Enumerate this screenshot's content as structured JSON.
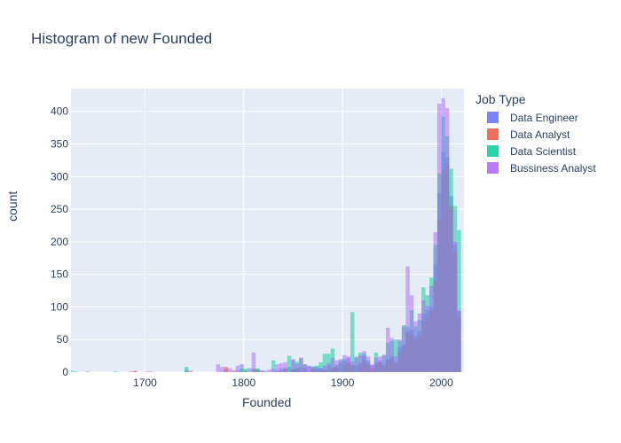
{
  "chart_data": {
    "type": "histogram",
    "title": "Histogram of new Founded",
    "xlabel": "Founded",
    "ylabel": "count",
    "xlim": [
      1625,
      2023
    ],
    "ylim": [
      0,
      435
    ],
    "x_ticks": [
      1700,
      1800,
      1900,
      2000
    ],
    "y_ticks": [
      0,
      50,
      100,
      150,
      200,
      250,
      300,
      350,
      400
    ],
    "bin_width": 4,
    "barmode": "overlay",
    "bar_opacity": 0.5,
    "grid": true,
    "legend": {
      "title": "Job Type",
      "placement": "right"
    },
    "series": [
      {
        "name": "Data Engineer",
        "color": "#636efa",
        "bins": [
          [
            1640,
            1
          ],
          [
            1740,
            3
          ],
          [
            1780,
            5
          ],
          [
            1792,
            2
          ],
          [
            1796,
            12
          ],
          [
            1804,
            6
          ],
          [
            1812,
            4
          ],
          [
            1820,
            2
          ],
          [
            1832,
            3
          ],
          [
            1840,
            6
          ],
          [
            1844,
            8
          ],
          [
            1848,
            4
          ],
          [
            1852,
            6
          ],
          [
            1856,
            8
          ],
          [
            1860,
            5
          ],
          [
            1864,
            9
          ],
          [
            1868,
            5
          ],
          [
            1872,
            8
          ],
          [
            1876,
            6
          ],
          [
            1880,
            3
          ],
          [
            1884,
            10
          ],
          [
            1888,
            6
          ],
          [
            1892,
            7
          ],
          [
            1896,
            14
          ],
          [
            1900,
            17
          ],
          [
            1904,
            22
          ],
          [
            1908,
            11
          ],
          [
            1912,
            11
          ],
          [
            1916,
            14
          ],
          [
            1920,
            25
          ],
          [
            1924,
            15
          ],
          [
            1928,
            10
          ],
          [
            1932,
            15
          ],
          [
            1936,
            18
          ],
          [
            1940,
            12
          ],
          [
            1944,
            20
          ],
          [
            1948,
            24
          ],
          [
            1952,
            16
          ],
          [
            1956,
            38
          ],
          [
            1960,
            42
          ],
          [
            1964,
            63
          ],
          [
            1968,
            65
          ],
          [
            1972,
            55
          ],
          [
            1976,
            63
          ],
          [
            1980,
            90
          ],
          [
            1984,
            95
          ],
          [
            1988,
            100
          ],
          [
            1992,
            165
          ],
          [
            1996,
            275
          ],
          [
            2000,
            338
          ],
          [
            2004,
            330
          ],
          [
            2008,
            270
          ],
          [
            2012,
            195
          ],
          [
            2016,
            93
          ]
        ]
      },
      {
        "name": "Data Analyst",
        "color": "#ef553b",
        "bins": [
          [
            1684,
            1
          ],
          [
            1688,
            2
          ],
          [
            1704,
            1
          ],
          [
            1744,
            2
          ],
          [
            1780,
            8
          ],
          [
            1788,
            3
          ],
          [
            1800,
            3
          ],
          [
            1808,
            5
          ],
          [
            1812,
            3
          ],
          [
            1816,
            2
          ],
          [
            1836,
            2
          ],
          [
            1840,
            5
          ],
          [
            1848,
            4
          ],
          [
            1852,
            6
          ],
          [
            1860,
            7
          ],
          [
            1868,
            6
          ],
          [
            1876,
            4
          ],
          [
            1880,
            4
          ],
          [
            1888,
            7
          ],
          [
            1892,
            9
          ],
          [
            1900,
            11
          ],
          [
            1904,
            15
          ],
          [
            1908,
            10
          ],
          [
            1916,
            9
          ],
          [
            1920,
            18
          ],
          [
            1924,
            11
          ],
          [
            1928,
            6
          ],
          [
            1932,
            11
          ],
          [
            1936,
            15
          ],
          [
            1940,
            10
          ],
          [
            1944,
            18
          ],
          [
            1948,
            20
          ],
          [
            1952,
            14
          ],
          [
            1956,
            30
          ],
          [
            1960,
            40
          ],
          [
            1964,
            60
          ],
          [
            1968,
            58
          ],
          [
            1972,
            50
          ],
          [
            1976,
            56
          ],
          [
            1980,
            78
          ],
          [
            1984,
            85
          ],
          [
            1988,
            95
          ],
          [
            1992,
            140
          ],
          [
            1996,
            235
          ],
          [
            2000,
            310
          ],
          [
            2004,
            320
          ],
          [
            2008,
            255
          ],
          [
            2012,
            185
          ],
          [
            2016,
            85
          ]
        ]
      },
      {
        "name": "Data Scientist",
        "color": "#00cc96",
        "bins": [
          [
            1624,
            2
          ],
          [
            1628,
            1
          ],
          [
            1668,
            1
          ],
          [
            1740,
            8
          ],
          [
            1796,
            5
          ],
          [
            1800,
            5
          ],
          [
            1808,
            4
          ],
          [
            1812,
            6
          ],
          [
            1828,
            18
          ],
          [
            1836,
            6
          ],
          [
            1844,
            25
          ],
          [
            1848,
            18
          ],
          [
            1852,
            16
          ],
          [
            1856,
            22
          ],
          [
            1860,
            12
          ],
          [
            1868,
            9
          ],
          [
            1872,
            10
          ],
          [
            1876,
            15
          ],
          [
            1880,
            28
          ],
          [
            1884,
            28
          ],
          [
            1888,
            36
          ],
          [
            1892,
            12
          ],
          [
            1896,
            18
          ],
          [
            1900,
            20
          ],
          [
            1904,
            12
          ],
          [
            1908,
            92
          ],
          [
            1912,
            22
          ],
          [
            1916,
            30
          ],
          [
            1920,
            28
          ],
          [
            1924,
            18
          ],
          [
            1932,
            30
          ],
          [
            1936,
            14
          ],
          [
            1940,
            25
          ],
          [
            1944,
            45
          ],
          [
            1948,
            48
          ],
          [
            1952,
            50
          ],
          [
            1956,
            48
          ],
          [
            1960,
            72
          ],
          [
            1964,
            70
          ],
          [
            1968,
            95
          ],
          [
            1972,
            70
          ],
          [
            1976,
            80
          ],
          [
            1980,
            130
          ],
          [
            1984,
            118
          ],
          [
            1988,
            145
          ],
          [
            1992,
            195
          ],
          [
            1996,
            305
          ],
          [
            2000,
            392
          ],
          [
            2004,
            362
          ],
          [
            2008,
            312
          ],
          [
            2012,
            255
          ],
          [
            2016,
            218
          ]
        ]
      },
      {
        "name": "Bussiness Analyst",
        "color": "#ab63fa",
        "bins": [
          [
            1688,
            1
          ],
          [
            1700,
            1
          ],
          [
            1772,
            12
          ],
          [
            1776,
            8
          ],
          [
            1784,
            6
          ],
          [
            1792,
            10
          ],
          [
            1808,
            30
          ],
          [
            1816,
            3
          ],
          [
            1824,
            4
          ],
          [
            1828,
            5
          ],
          [
            1832,
            12
          ],
          [
            1836,
            14
          ],
          [
            1840,
            15
          ],
          [
            1848,
            20
          ],
          [
            1852,
            13
          ],
          [
            1856,
            22
          ],
          [
            1860,
            12
          ],
          [
            1864,
            10
          ],
          [
            1868,
            8
          ],
          [
            1872,
            5
          ],
          [
            1876,
            6
          ],
          [
            1880,
            10
          ],
          [
            1884,
            14
          ],
          [
            1888,
            22
          ],
          [
            1892,
            18
          ],
          [
            1896,
            20
          ],
          [
            1900,
            26
          ],
          [
            1904,
            24
          ],
          [
            1908,
            16
          ],
          [
            1912,
            24
          ],
          [
            1916,
            26
          ],
          [
            1920,
            32
          ],
          [
            1924,
            24
          ],
          [
            1928,
            12
          ],
          [
            1932,
            22
          ],
          [
            1936,
            24
          ],
          [
            1940,
            27
          ],
          [
            1944,
            68
          ],
          [
            1948,
            52
          ],
          [
            1952,
            24
          ],
          [
            1956,
            50
          ],
          [
            1960,
            70
          ],
          [
            1964,
            162
          ],
          [
            1968,
            118
          ],
          [
            1972,
            78
          ],
          [
            1976,
            90
          ],
          [
            1980,
            110
          ],
          [
            1984,
            102
          ],
          [
            1988,
            132
          ],
          [
            1992,
            215
          ],
          [
            1996,
            412
          ],
          [
            2000,
            420
          ],
          [
            2004,
            405
          ],
          [
            2008,
            250
          ],
          [
            2012,
            200
          ],
          [
            2016,
            95
          ]
        ]
      }
    ]
  }
}
